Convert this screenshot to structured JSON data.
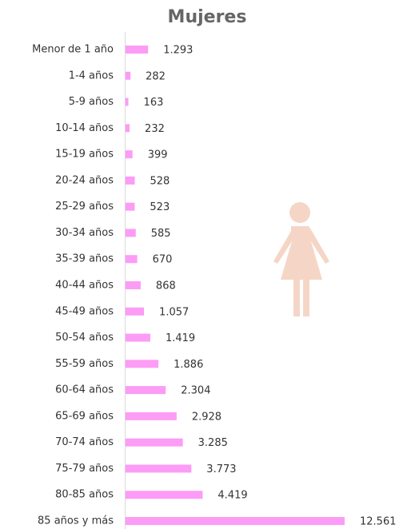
{
  "chart_data": {
    "type": "bar",
    "orientation": "horizontal",
    "title": "Mujeres",
    "categories": [
      "Menor de 1 año",
      "1-4 años",
      "5-9 años",
      "10-14 años",
      "15-19 años",
      "20-24 años",
      "25-29 años",
      "30-34 años",
      "35-39 años",
      "40-44 años",
      "45-49 años",
      "50-54 años",
      "55-59 años",
      "60-64 años",
      "65-69 años",
      "70-74 años",
      "75-79 años",
      "80-85 años",
      "85 años y más"
    ],
    "values": [
      1293,
      282,
      163,
      232,
      399,
      528,
      523,
      585,
      670,
      868,
      1057,
      1419,
      1886,
      2304,
      2928,
      3285,
      3773,
      4419,
      12561
    ],
    "value_labels": [
      "1.293",
      "282",
      "163",
      "232",
      "399",
      "528",
      "523",
      "585",
      "670",
      "868",
      "1.057",
      "1.419",
      "1.886",
      "2.304",
      "2.928",
      "3.285",
      "3.773",
      "4.419",
      "12.561"
    ],
    "color": "#fc9cf6"
  }
}
